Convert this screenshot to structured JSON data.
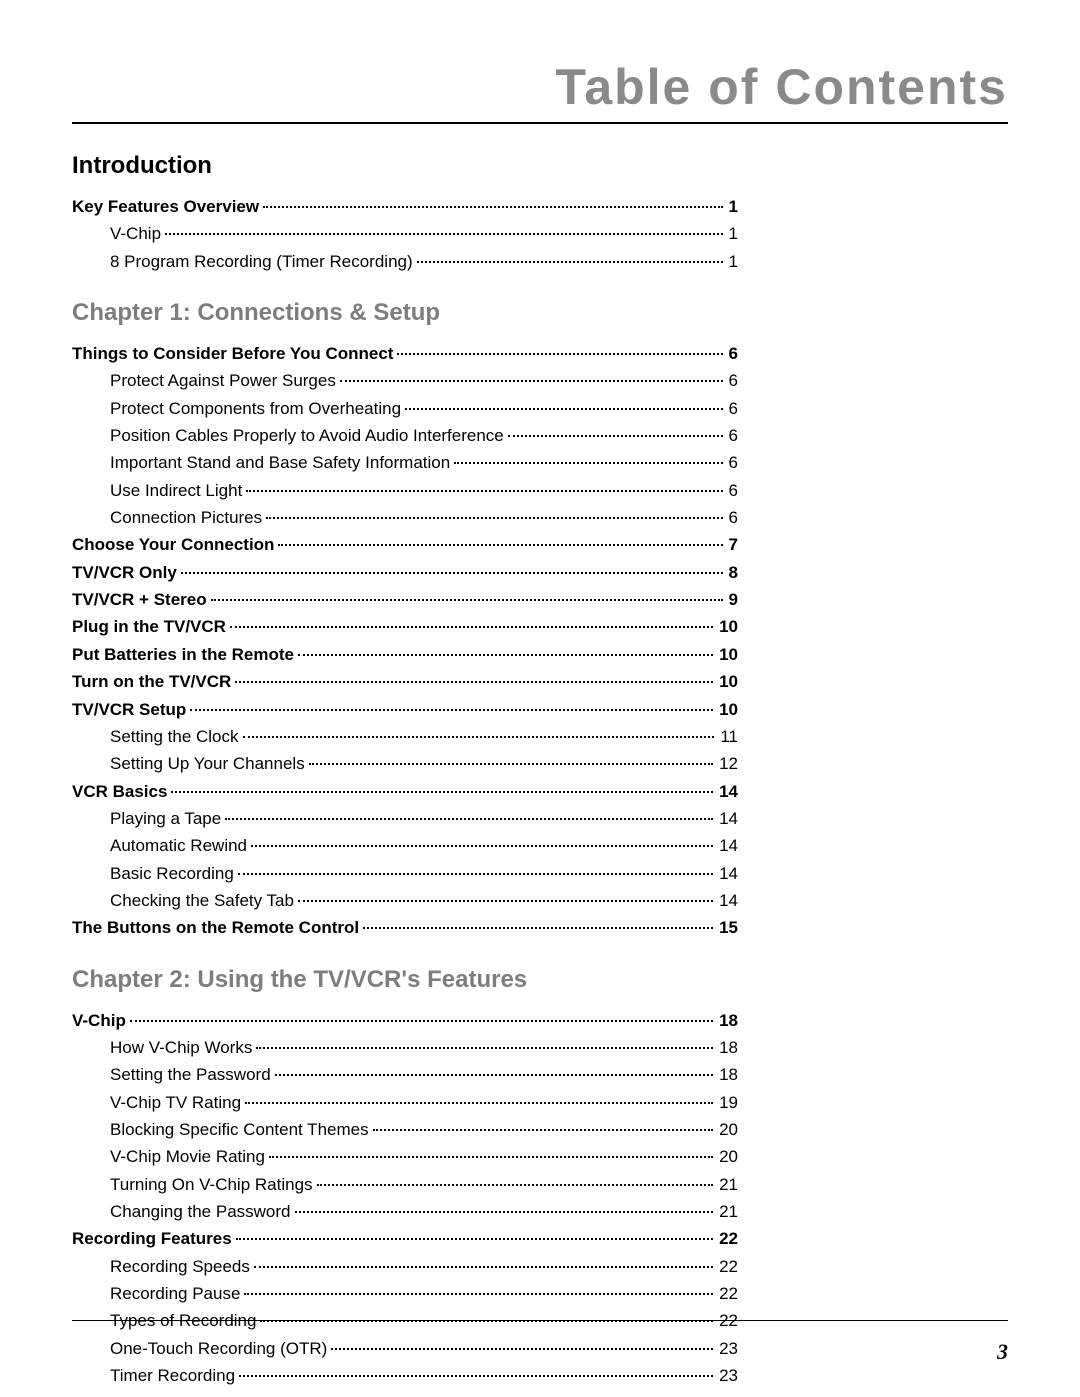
{
  "header_title": "Table of Contents",
  "page_number": "3",
  "colors": {
    "header_gray": "#8a8a8a",
    "heading_gray": "#7d7d7d",
    "text": "#000000",
    "rule": "#000000",
    "background": "#ffffff"
  },
  "typography": {
    "header_title_fontsize": 50,
    "header_title_weight": 800,
    "section_heading_fontsize": 24,
    "section_heading_weight": 700,
    "toc_fontsize": 17,
    "page_number_fontsize": 22,
    "page_number_style": "italic bold serif"
  },
  "sections": [
    {
      "heading": "Introduction",
      "heading_color": "black",
      "items": [
        {
          "label": "Key Features Overview",
          "page": "1",
          "bold": true,
          "indent": 0
        },
        {
          "label": "V-Chip",
          "page": "1",
          "bold": false,
          "indent": 1
        },
        {
          "label": "8 Program Recording (Timer Recording)",
          "page": "1",
          "bold": false,
          "indent": 1
        }
      ]
    },
    {
      "heading": "Chapter 1: Connections & Setup",
      "heading_color": "gray",
      "items": [
        {
          "label": "Things to Consider Before You Connect",
          "page": "6",
          "bold": true,
          "indent": 0
        },
        {
          "label": "Protect Against Power Surges",
          "page": "6",
          "bold": false,
          "indent": 1
        },
        {
          "label": "Protect Components from Overheating",
          "page": "6",
          "bold": false,
          "indent": 1
        },
        {
          "label": "Position Cables Properly to Avoid Audio Interference",
          "page": "6",
          "bold": false,
          "indent": 1
        },
        {
          "label": "Important Stand and Base Safety Information",
          "page": "6",
          "bold": false,
          "indent": 1
        },
        {
          "label": "Use Indirect Light",
          "page": "6",
          "bold": false,
          "indent": 1
        },
        {
          "label": "Connection Pictures",
          "page": "6",
          "bold": false,
          "indent": 1
        },
        {
          "label": "Choose Your Connection",
          "page": "7",
          "bold": true,
          "indent": 0
        },
        {
          "label": "TV/VCR Only",
          "page": "8",
          "bold": true,
          "indent": 0
        },
        {
          "label": "TV/VCR + Stereo",
          "page": "9",
          "bold": true,
          "indent": 0
        },
        {
          "label": "Plug in the TV/VCR",
          "page": "10",
          "bold": true,
          "indent": 0
        },
        {
          "label": "Put Batteries in the Remote",
          "page": "10",
          "bold": true,
          "indent": 0
        },
        {
          "label": "Turn on the TV/VCR",
          "page": "10",
          "bold": true,
          "indent": 0
        },
        {
          "label": "TV/VCR Setup",
          "page": "10",
          "bold": true,
          "indent": 0
        },
        {
          "label": "Setting the Clock",
          "page": "11",
          "bold": false,
          "indent": 1
        },
        {
          "label": "Setting Up Your Channels",
          "page": "12",
          "bold": false,
          "indent": 1
        },
        {
          "label": "VCR Basics",
          "page": "14",
          "bold": true,
          "indent": 0
        },
        {
          "label": "Playing a Tape",
          "page": "14",
          "bold": false,
          "indent": 1
        },
        {
          "label": "Automatic Rewind",
          "page": "14",
          "bold": false,
          "indent": 1
        },
        {
          "label": "Basic Recording",
          "page": "14",
          "bold": false,
          "indent": 1
        },
        {
          "label": "Checking the Safety Tab",
          "page": "14",
          "bold": false,
          "indent": 1
        },
        {
          "label": "The Buttons on the Remote Control",
          "page": "15",
          "bold": true,
          "indent": 0
        }
      ]
    },
    {
      "heading": "Chapter 2: Using the TV/VCR's Features",
      "heading_color": "gray",
      "items": [
        {
          "label": "V-Chip",
          "page": "18",
          "bold": true,
          "indent": 0
        },
        {
          "label": "How V-Chip Works",
          "page": "18",
          "bold": false,
          "indent": 1
        },
        {
          "label": "Setting the Password",
          "page": "18",
          "bold": false,
          "indent": 1
        },
        {
          "label": "V-Chip TV Rating",
          "page": "19",
          "bold": false,
          "indent": 1
        },
        {
          "label": "Blocking Specific Content Themes",
          "page": "20",
          "bold": false,
          "indent": 1
        },
        {
          "label": "V-Chip Movie Rating",
          "page": "20",
          "bold": false,
          "indent": 1
        },
        {
          "label": "Turning On V-Chip Ratings",
          "page": "21",
          "bold": false,
          "indent": 1
        },
        {
          "label": "Changing the Password",
          "page": "21",
          "bold": false,
          "indent": 1
        },
        {
          "label": "Recording Features",
          "page": "22",
          "bold": true,
          "indent": 0
        },
        {
          "label": "Recording Speeds",
          "page": "22",
          "bold": false,
          "indent": 1
        },
        {
          "label": "Recording Pause",
          "page": "22",
          "bold": false,
          "indent": 1
        },
        {
          "label": "Types of Recording",
          "page": "22",
          "bold": false,
          "indent": 1
        },
        {
          "label": "One-Touch Recording (OTR)",
          "page": "23",
          "bold": false,
          "indent": 1
        },
        {
          "label": "Timer Recording",
          "page": "23",
          "bold": false,
          "indent": 1
        }
      ]
    }
  ]
}
